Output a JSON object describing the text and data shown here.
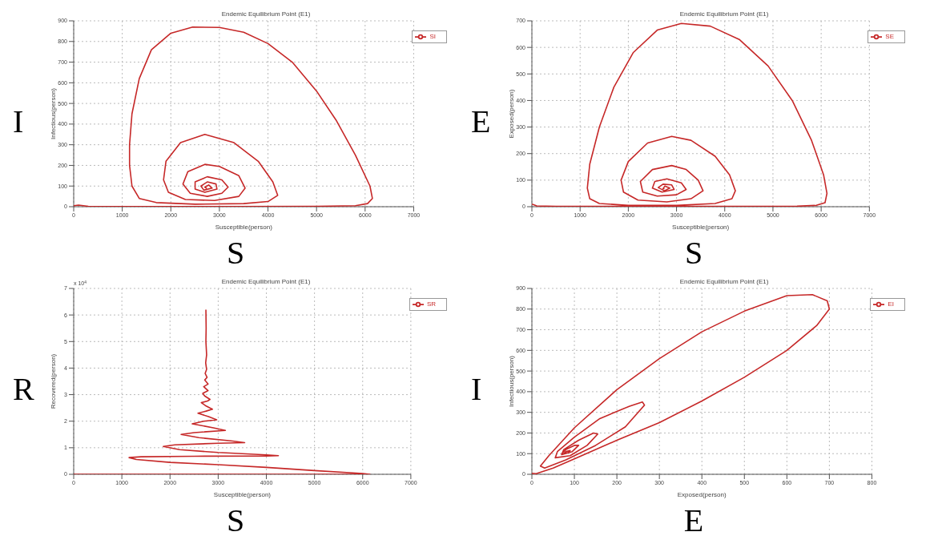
{
  "chart_data": [
    {
      "type": "line",
      "title": "Endemic Equilibrium Point (E1)",
      "xlabel": "Susceptible(person)",
      "ylabel": "Infectious(person)",
      "xlim": [
        0,
        7000
      ],
      "xticks": [
        0,
        1000,
        2000,
        3000,
        4000,
        5000,
        6000,
        7000
      ],
      "ylim": [
        0,
        900
      ],
      "yticks": [
        0,
        100,
        200,
        300,
        400,
        500,
        600,
        700,
        800,
        900
      ],
      "grid": true,
      "legend": "top right",
      "marker": "none",
      "line_style": "solid",
      "annotations": [
        "I",
        "S"
      ],
      "series": [
        {
          "name": "SI",
          "color": "#c62828",
          "x": [
            0,
            100,
            300,
            1000,
            3000,
            5000,
            5800,
            6050,
            6150,
            6100,
            5800,
            5400,
            5000,
            4500,
            4000,
            3500,
            3000,
            2450,
            2000,
            1600,
            1350,
            1200,
            1150,
            1150,
            1200,
            1350,
            1700,
            2500,
            3500,
            4000,
            4200,
            4100,
            3800,
            3300,
            2700,
            2200,
            1900,
            1850,
            1950,
            2300,
            2900,
            3400,
            3530,
            3400,
            3000,
            2700,
            2350,
            2250,
            2400,
            2750,
            3050,
            3180,
            3050,
            2750,
            2500,
            2500,
            2700,
            2950,
            2930,
            2750,
            2620,
            2680,
            2850,
            2780,
            2700,
            2740
          ],
          "values": [
            5,
            8,
            2,
            1,
            1,
            2,
            5,
            15,
            40,
            100,
            250,
            420,
            560,
            700,
            790,
            845,
            868,
            870,
            840,
            760,
            620,
            450,
            300,
            200,
            100,
            40,
            20,
            12,
            15,
            25,
            55,
            120,
            220,
            310,
            350,
            310,
            220,
            130,
            70,
            35,
            30,
            50,
            90,
            150,
            195,
            205,
            170,
            110,
            65,
            50,
            65,
            95,
            130,
            145,
            120,
            85,
            70,
            85,
            110,
            120,
            100,
            80,
            90,
            105,
            95,
            88
          ]
        }
      ]
    },
    {
      "type": "line",
      "title": "Endemic Equilibrium Point (E1)",
      "xlabel": "Susceptible(person)",
      "ylabel": "Exposed(person)",
      "xlim": [
        0,
        7000
      ],
      "xticks": [
        0,
        1000,
        2000,
        3000,
        4000,
        5000,
        6000,
        7000
      ],
      "ylim": [
        0,
        700
      ],
      "yticks": [
        0,
        100,
        200,
        300,
        400,
        500,
        600,
        700
      ],
      "grid": true,
      "legend": "top right",
      "marker": "none",
      "line_style": "solid",
      "annotations": [
        "E",
        "S"
      ],
      "series": [
        {
          "name": "SE",
          "color": "#c62828",
          "x": [
            0,
            100,
            500,
            3000,
            5500,
            5900,
            6080,
            6120,
            6050,
            5800,
            5400,
            4900,
            4300,
            3700,
            3100,
            2600,
            2100,
            1700,
            1400,
            1200,
            1150,
            1200,
            1400,
            2000,
            3000,
            3800,
            4150,
            4220,
            4100,
            3800,
            3300,
            2900,
            2400,
            2000,
            1850,
            1900,
            2200,
            2800,
            3300,
            3550,
            3450,
            3200,
            2900,
            2500,
            2250,
            2300,
            2600,
            3000,
            3200,
            3100,
            2800,
            2550,
            2500,
            2700,
            2950,
            2900,
            2720,
            2620,
            2750,
            2860,
            2760,
            2720,
            2750
          ],
          "values": [
            10,
            3,
            1,
            1,
            2,
            5,
            15,
            50,
            120,
            250,
            400,
            530,
            630,
            680,
            690,
            665,
            580,
            450,
            300,
            160,
            70,
            30,
            12,
            5,
            5,
            12,
            30,
            60,
            120,
            190,
            250,
            265,
            240,
            170,
            100,
            55,
            25,
            18,
            30,
            60,
            100,
            140,
            155,
            140,
            95,
            55,
            40,
            45,
            65,
            90,
            105,
            95,
            70,
            55,
            65,
            82,
            85,
            72,
            60,
            70,
            78,
            68,
            68
          ]
        }
      ]
    },
    {
      "type": "line",
      "title": "Endemic Equilibrium Point (E1)",
      "xlabel": "Susceptible(person)",
      "ylabel": "Recovered(person)",
      "xlim": [
        0,
        7000
      ],
      "xticks": [
        0,
        1000,
        2000,
        3000,
        4000,
        5000,
        6000,
        7000
      ],
      "ylim": [
        0,
        7
      ],
      "yticks": [
        0,
        1,
        2,
        3,
        4,
        5,
        6,
        7
      ],
      "grid": true,
      "legend": "top right",
      "marker": "none",
      "line_style": "solid",
      "annotations": [
        "R",
        "S",
        "x 10$^{4}$"
      ],
      "series": [
        {
          "name": "SR",
          "color": "#c62828",
          "x": [
            0,
            3000,
            6150,
            6000,
            5000,
            4000,
            3000,
            2000,
            1300,
            1150,
            1400,
            2500,
            4000,
            4250,
            4000,
            3000,
            2200,
            1860,
            2100,
            3000,
            3550,
            3300,
            2600,
            2230,
            2500,
            3150,
            2900,
            2460,
            2700,
            2970,
            2800,
            2580,
            2750,
            2880,
            2750,
            2650,
            2780,
            2830,
            2720,
            2680,
            2790,
            2700,
            2790,
            2720,
            2770,
            2730,
            2760,
            2740,
            2760,
            2745,
            2750,
            2745
          ],
          "values": [
            0,
            0,
            0,
            0.03,
            0.14,
            0.26,
            0.36,
            0.45,
            0.56,
            0.63,
            0.66,
            0.68,
            0.69,
            0.7,
            0.73,
            0.82,
            0.93,
            1.05,
            1.11,
            1.17,
            1.19,
            1.25,
            1.38,
            1.5,
            1.57,
            1.65,
            1.75,
            1.9,
            2,
            2.05,
            2.17,
            2.3,
            2.38,
            2.45,
            2.57,
            2.7,
            2.76,
            2.82,
            2.95,
            3.05,
            3.15,
            3.3,
            3.4,
            3.55,
            3.65,
            3.8,
            3.95,
            4.2,
            4.5,
            5,
            5.5,
            6.2
          ]
        }
      ]
    },
    {
      "type": "line",
      "title": "Endemic Equilibrium Point (E1)",
      "xlabel": "Exposed(person)",
      "ylabel": "Infectious(person)",
      "xlim": [
        0,
        800
      ],
      "xticks": [
        0,
        100,
        200,
        300,
        400,
        500,
        600,
        700,
        800
      ],
      "ylim": [
        0,
        900
      ],
      "yticks": [
        0,
        100,
        200,
        300,
        400,
        500,
        600,
        700,
        800,
        900
      ],
      "grid": true,
      "legend": "top right",
      "marker": "none",
      "line_style": "solid",
      "annotations": [
        "I",
        "E"
      ],
      "series": [
        {
          "name": "EI",
          "color": "#c62828",
          "x": [
            0,
            10,
            50,
            100,
            200,
            300,
            400,
            500,
            600,
            670,
            700,
            695,
            660,
            600,
            500,
            400,
            300,
            200,
            100,
            40,
            20,
            30,
            80,
            150,
            220,
            265,
            260,
            230,
            160,
            100,
            60,
            55,
            90,
            130,
            155,
            145,
            110,
            75,
            70,
            95,
            110,
            100,
            80,
            70,
            85,
            90,
            80,
            75
          ],
          "values": [
            5,
            3,
            30,
            75,
            165,
            250,
            355,
            470,
            600,
            720,
            800,
            840,
            870,
            865,
            790,
            690,
            560,
            410,
            225,
            90,
            40,
            30,
            70,
            140,
            230,
            335,
            350,
            330,
            270,
            180,
            110,
            80,
            90,
            140,
            195,
            200,
            165,
            120,
            95,
            110,
            140,
            140,
            120,
            100,
            105,
            115,
            110,
            100
          ]
        }
      ]
    }
  ]
}
